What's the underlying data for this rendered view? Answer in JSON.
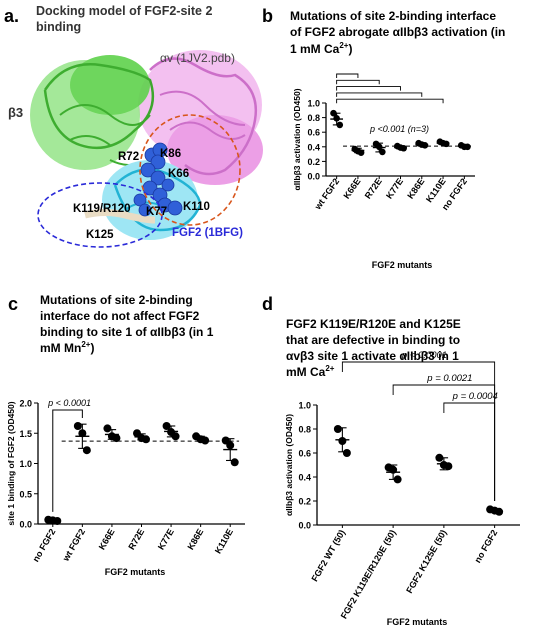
{
  "panels": {
    "a": {
      "letter": "a.",
      "title_line1": "Docking model of FGF2-site 2",
      "title_line2": "binding",
      "labels": {
        "av": "αv (1JV2.pdb)",
        "b3": "β3",
        "R72": "R72",
        "K86": "K86",
        "K66": "K66",
        "K119R120": "K119/R120",
        "K77": "K77",
        "K110": "K110",
        "K125": "K125",
        "fgf2": "FGF2 (1BFG)"
      },
      "colors": {
        "av": "#e07ad8",
        "b3": "#2ec41c",
        "fgf2": "#35c8e8",
        "residues": "#2f5ad8",
        "circle_blue": "#2a2ad8",
        "circle_orange": "#d8561c"
      }
    },
    "b": {
      "letter": "b",
      "title_line1": "Mutations of site 2-binding interface",
      "title_line2": "of FGF2 abrogate αIIbβ3 activation (in",
      "title_line3a": "1 mM Ca",
      "title_line3sup": "2+",
      "title_line3b": ")",
      "annotation": "p <0.001 (n=3)"
    },
    "c": {
      "letter": "c",
      "title_line1": "Mutations of site 2-binding",
      "title_line2": "interface do not affect FGF2",
      "title_line3": "binding to site 1 of αIIbβ3 (in 1",
      "title_line4a": "mM Mn",
      "title_line4sup": "2+",
      "title_line4b": ")",
      "annotation": "p < 0.0001"
    },
    "d": {
      "letter": "d",
      "title_line1": "FGF2 K119E/R120E and K125E",
      "title_line2": "that are defective in binding to",
      "title_line3": "αvβ3 site 1 activate αIIbβ3 in 1",
      "title_line4a": "mM Ca",
      "title_line4sup": "2+",
      "annotations": [
        "p < 0.0001",
        "p = 0.0021",
        "p = 0.0004"
      ]
    }
  },
  "chart_data": [
    {
      "panel": "b",
      "type": "scatter",
      "categories": [
        "wt FGF2",
        "K66E",
        "R72E",
        "K77E",
        "K86E",
        "K110E",
        "no FGF2"
      ],
      "points": [
        [
          0.86,
          0.79,
          0.7
        ],
        [
          0.37,
          0.34,
          0.32
        ],
        [
          0.44,
          0.4,
          0.33
        ],
        [
          0.41,
          0.39,
          0.38
        ],
        [
          0.45,
          0.43,
          0.42
        ],
        [
          0.47,
          0.45,
          0.44
        ],
        [
          0.42,
          0.4,
          0.4
        ]
      ],
      "means": [
        0.78,
        0.35,
        0.39,
        0.39,
        0.43,
        0.45,
        0.41
      ],
      "errors": [
        0.08,
        0.03,
        0.06,
        0.02,
        0.02,
        0.02,
        0.02
      ],
      "reference_line": 0.41,
      "xlabel": "FGF2 mutants",
      "ylabel": "αIIbβ3 activation (OD450)",
      "ylim": [
        0,
        1.0
      ],
      "yticks": [
        "0.0",
        "0.2",
        "0.4",
        "0.6",
        "0.8",
        "1.0"
      ]
    },
    {
      "panel": "c",
      "type": "scatter",
      "categories": [
        "no FGF2",
        "wt FGF2",
        "K66E",
        "R72E",
        "K77E",
        "K86E",
        "K110E"
      ],
      "points": [
        [
          0.07,
          0.06,
          0.05
        ],
        [
          1.62,
          1.5,
          1.22
        ],
        [
          1.58,
          1.45,
          1.42
        ],
        [
          1.5,
          1.42,
          1.4
        ],
        [
          1.62,
          1.52,
          1.45
        ],
        [
          1.45,
          1.4,
          1.38
        ],
        [
          1.38,
          1.3,
          1.02
        ]
      ],
      "means": [
        0.06,
        1.45,
        1.48,
        1.44,
        1.53,
        1.41,
        1.23
      ],
      "errors": [
        0.01,
        0.2,
        0.08,
        0.05,
        0.09,
        0.04,
        0.18
      ],
      "reference_line": 1.37,
      "xlabel": "FGF2 mutants",
      "ylabel": "site 1 binding of FGF2 (OD450)",
      "ylim": [
        0,
        2.0
      ],
      "yticks": [
        "0.0",
        "0.5",
        "1.0",
        "1.5",
        "2.0"
      ]
    },
    {
      "panel": "d",
      "type": "scatter",
      "categories": [
        "FGF2 WT (50)",
        "FGF2 K119E/R120E (50)",
        "FGF2 K125E (50)",
        "no FGF2"
      ],
      "points": [
        [
          0.8,
          0.7,
          0.6
        ],
        [
          0.48,
          0.46,
          0.38
        ],
        [
          0.56,
          0.5,
          0.49
        ],
        [
          0.13,
          0.12,
          0.11
        ]
      ],
      "means": [
        0.71,
        0.44,
        0.51,
        0.12
      ],
      "errors": [
        0.1,
        0.06,
        0.05,
        0.01
      ],
      "xlabel": "FGF2 mutants",
      "ylabel": "αIIbβ3 activation (OD450)",
      "ylim": [
        0,
        1.0
      ],
      "yticks": [
        "0.0",
        "0.2",
        "0.4",
        "0.6",
        "0.8",
        "1.0"
      ]
    }
  ]
}
